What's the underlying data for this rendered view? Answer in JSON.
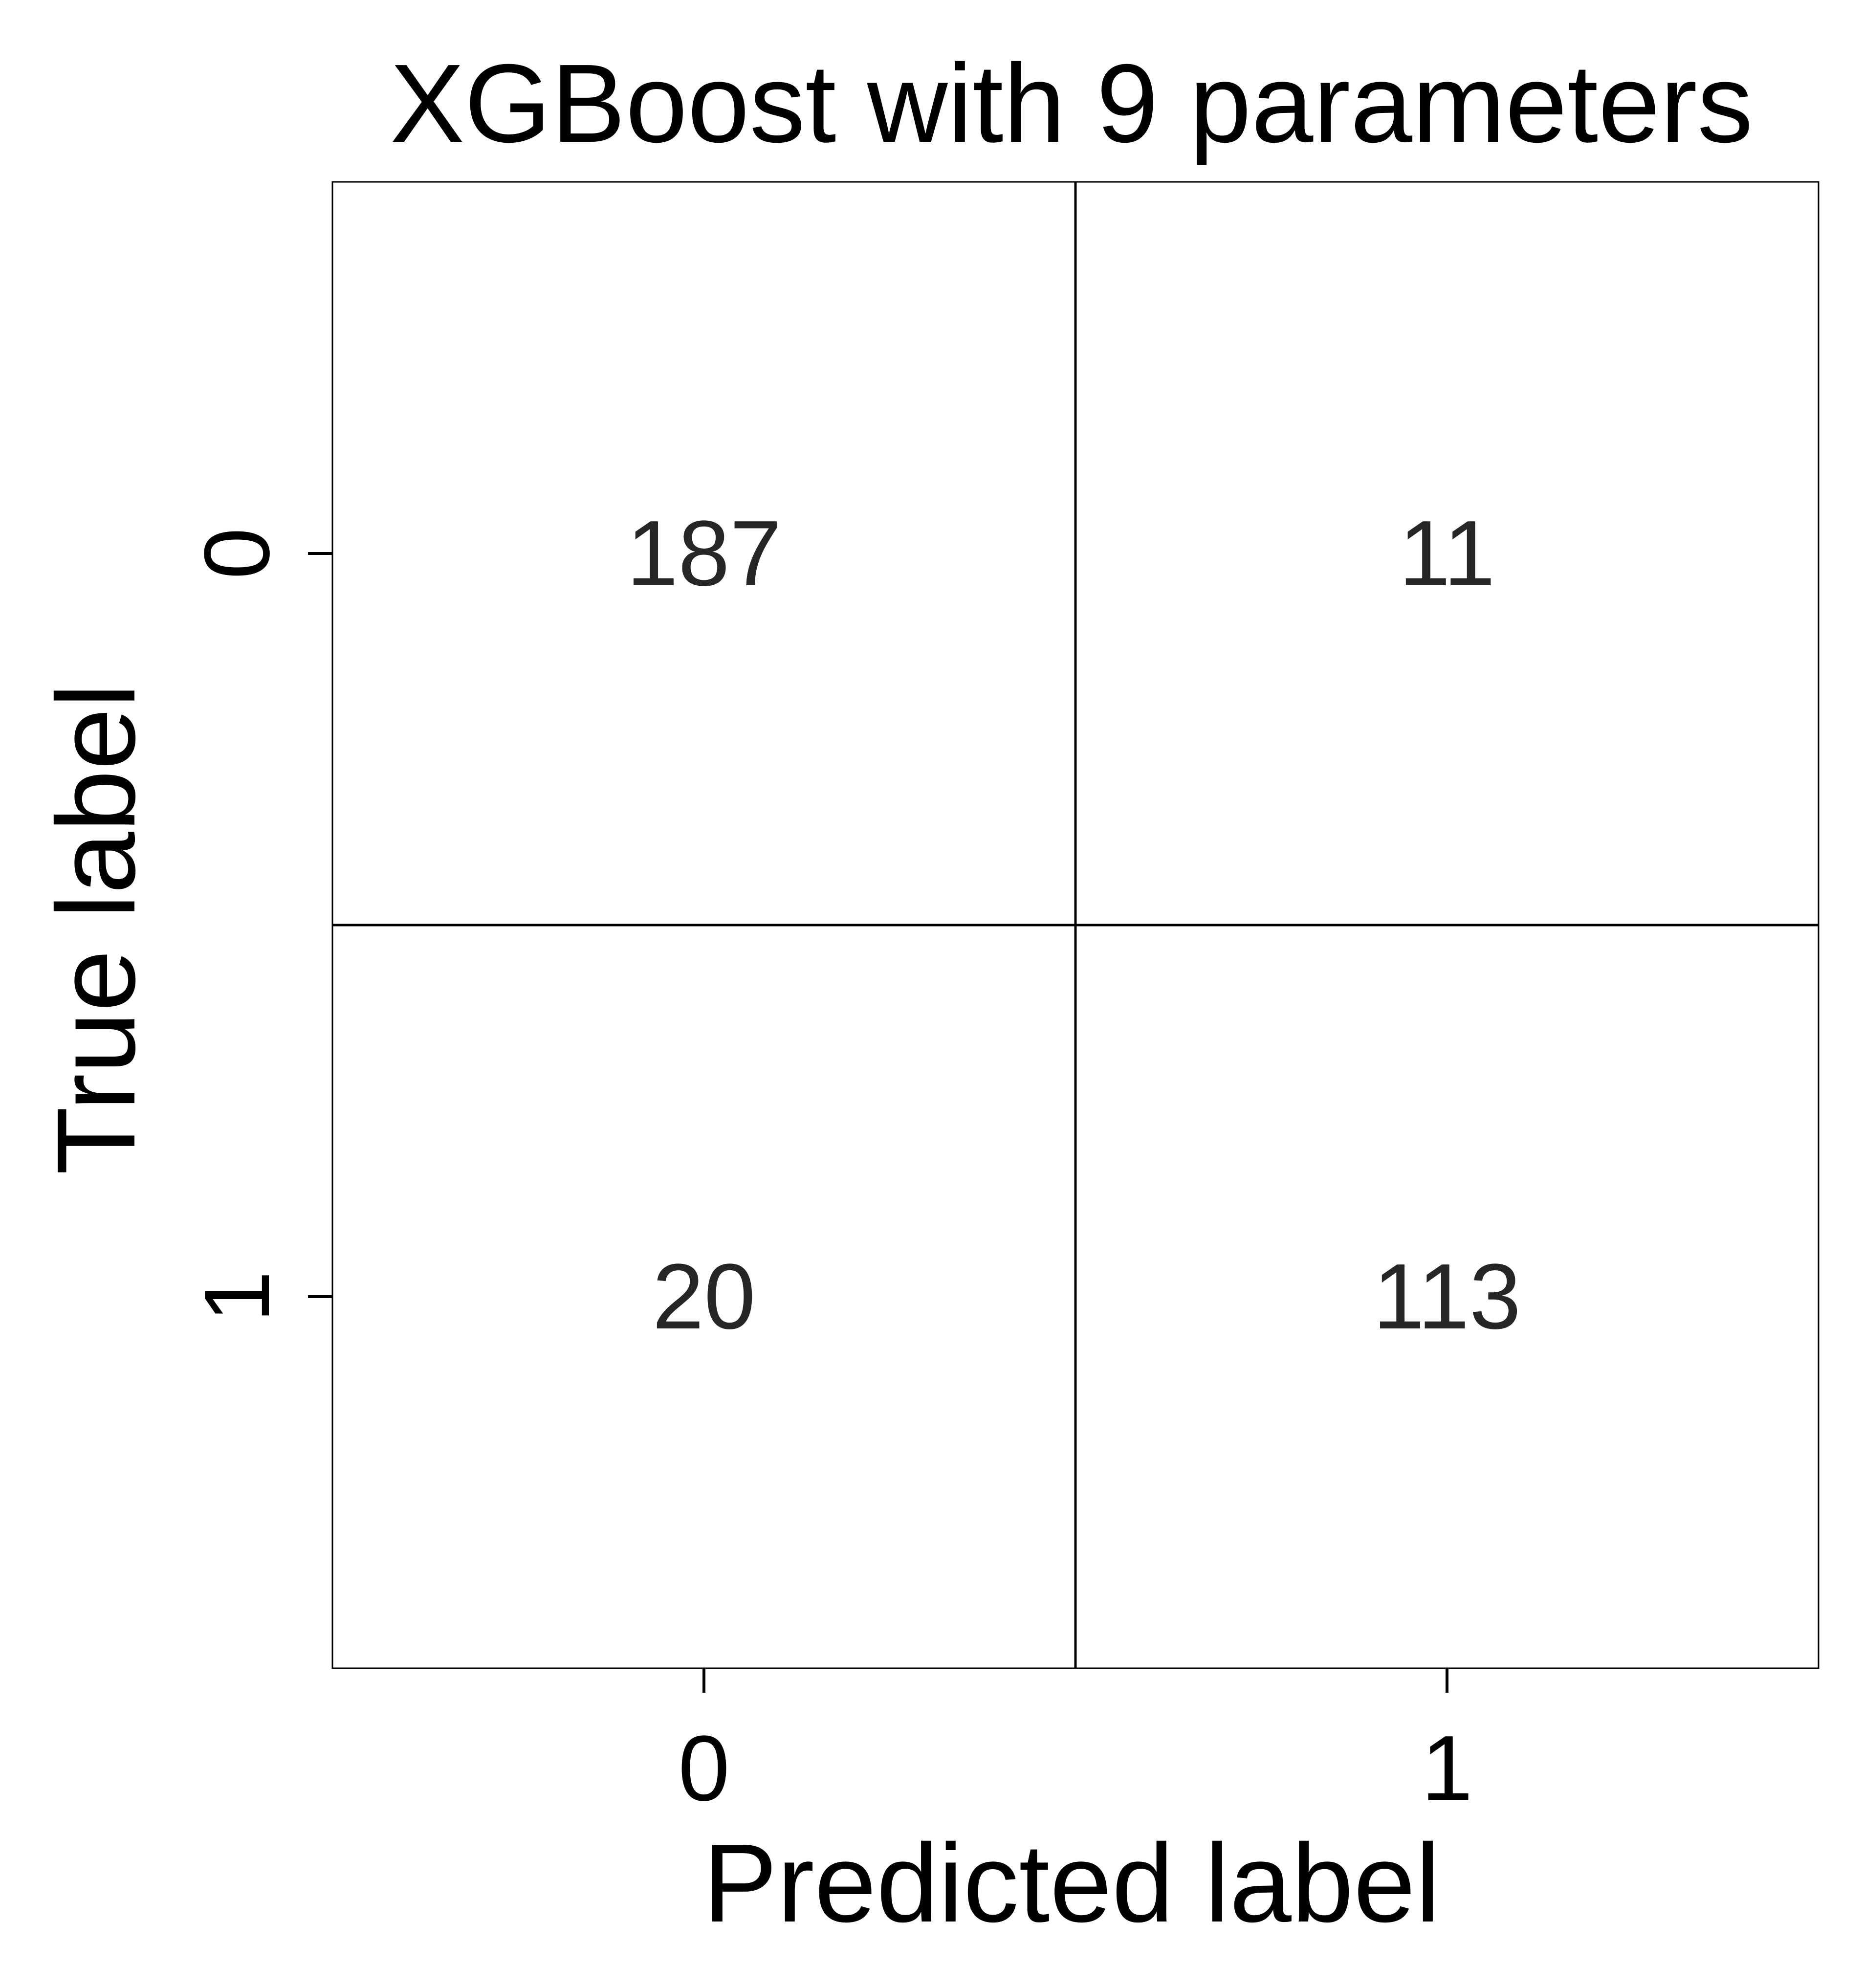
{
  "chart_data": {
    "type": "heatmap",
    "title": "XGBoost with 9 parameters",
    "xlabel": "Predicted label",
    "ylabel": "True label",
    "x_categories": [
      "0",
      "1"
    ],
    "y_categories": [
      "0",
      "1"
    ],
    "matrix": [
      [
        187,
        11
      ],
      [
        20,
        113
      ]
    ],
    "colors": {
      "cell_fill": "#ffffff",
      "grid_line": "#000000",
      "cell_text": "#262626",
      "axis_text": "#000000"
    },
    "grid": true,
    "legend": "none"
  }
}
